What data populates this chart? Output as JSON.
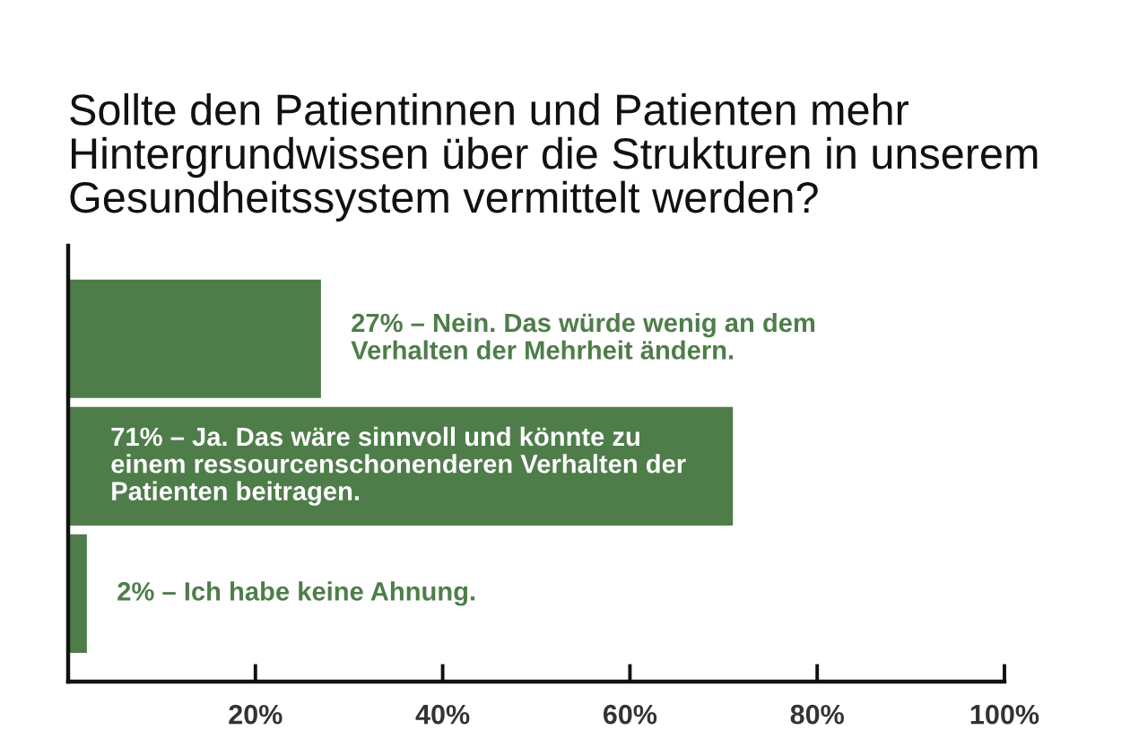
{
  "chart_data": {
    "type": "bar",
    "orientation": "horizontal",
    "title": "Sollte den Patientinnen und Patienten mehr\nHintergrundwissen über die Strukturen in unserem\nGesundheitssystem vermittelt werden?",
    "categories": [
      null,
      null,
      null
    ],
    "values": [
      27,
      71,
      2
    ],
    "color": "#4e7d4a",
    "value_labels": [
      "27% – Nein. Das würde wenig an dem\nVerhalten der Mehrheit ändern.",
      "71% – Ja. Das wäre sinnvoll und könnte zu\neinem ressourcenschonenderen Verhalten der\nPatienten beitragen.",
      "2% – Ich habe keine Ahnung."
    ],
    "xlim": [
      0,
      100
    ],
    "xticks": [
      {
        "value": 20,
        "label": "20%"
      },
      {
        "value": 40,
        "label": "40%"
      },
      {
        "value": 60,
        "label": "60%"
      },
      {
        "value": 80,
        "label": "80%"
      },
      {
        "value": 100,
        "label": "100%"
      }
    ],
    "tick_labels": "x",
    "grid": false,
    "legend": false
  }
}
